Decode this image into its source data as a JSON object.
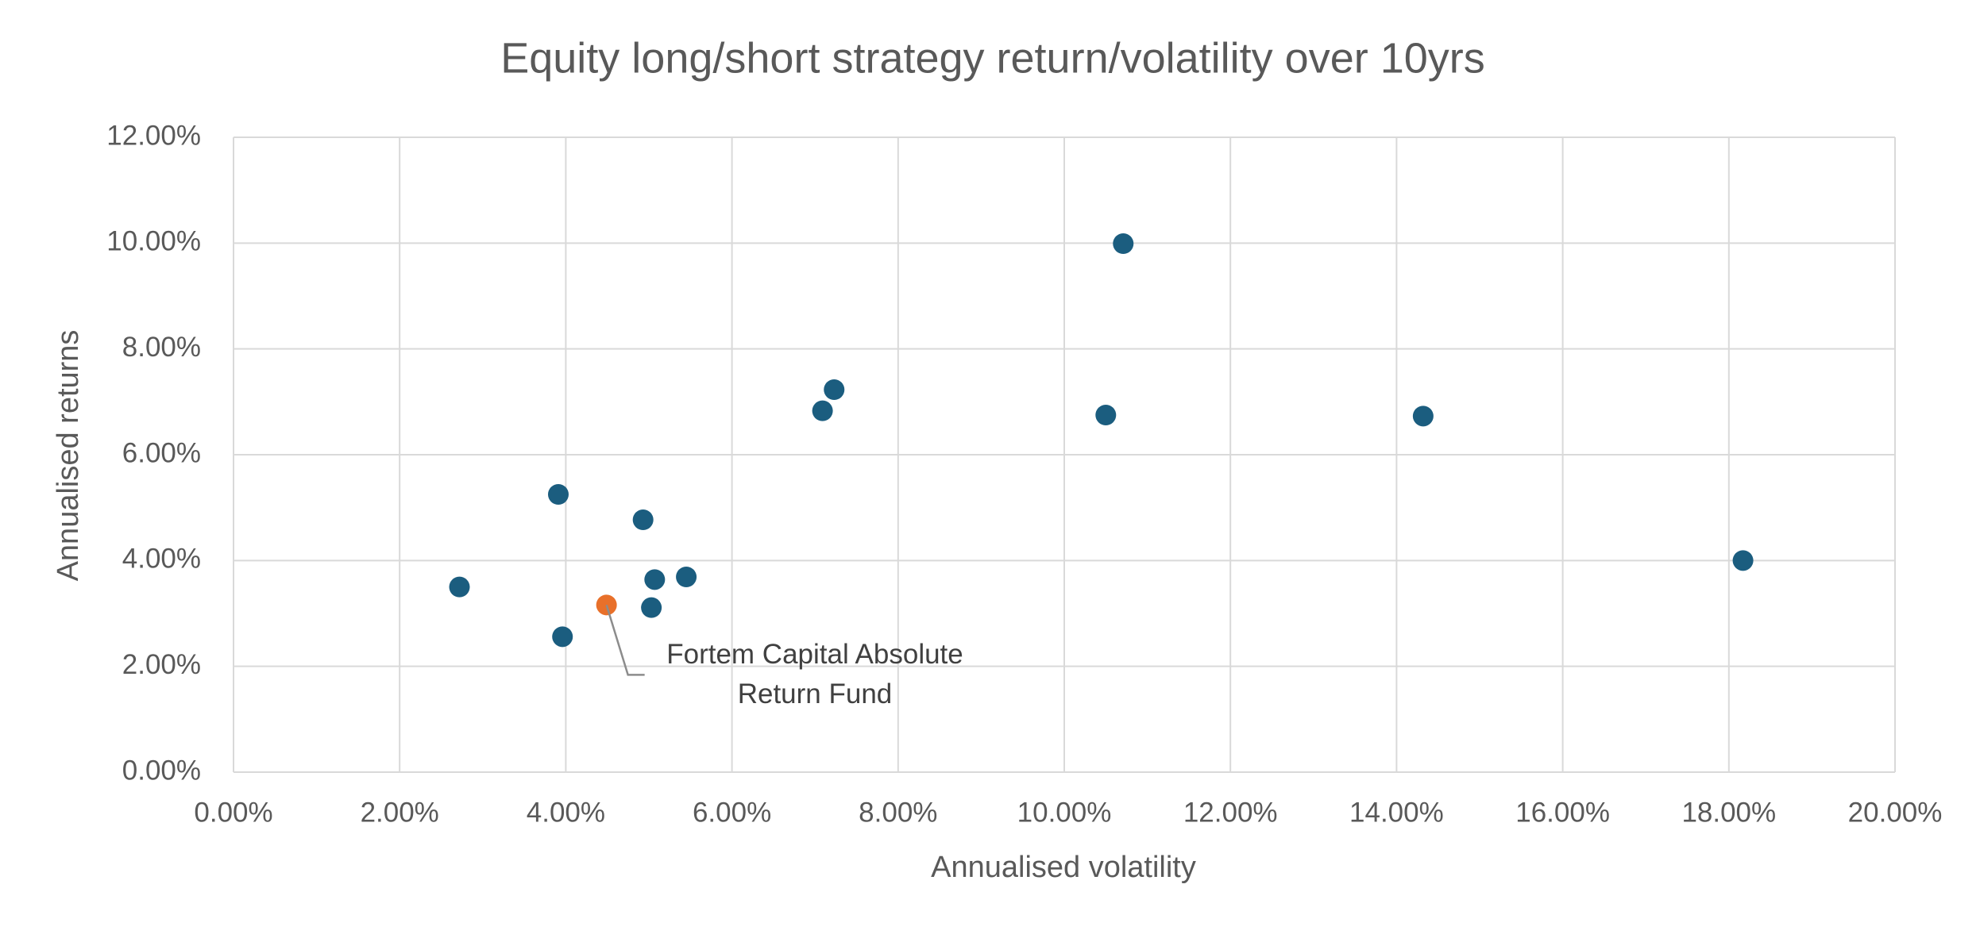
{
  "chart_data": {
    "type": "scatter",
    "title": "Equity long/short strategy return/volatility over 10yrs",
    "x_label": "Annualised volatility",
    "y_label": "Annualised returns",
    "xlim": [
      0,
      20
    ],
    "xticks": [
      {
        "value": 0,
        "label": "0.00%"
      },
      {
        "value": 2,
        "label": "2.00%"
      },
      {
        "value": 4,
        "label": "4.00%"
      },
      {
        "value": 6,
        "label": "6.00%"
      },
      {
        "value": 8,
        "label": "8.00%"
      },
      {
        "value": 10,
        "label": "10.00%"
      },
      {
        "value": 12,
        "label": "12.00%"
      },
      {
        "value": 14,
        "label": "14.00%"
      },
      {
        "value": 16,
        "label": "16.00%"
      },
      {
        "value": 18,
        "label": "18.00%"
      },
      {
        "value": 20,
        "label": "20.00%"
      }
    ],
    "ylim": [
      0,
      12
    ],
    "yticks": [
      {
        "value": 0,
        "label": "0.00%"
      },
      {
        "value": 2,
        "label": "2.00%"
      },
      {
        "value": 4,
        "label": "4.00%"
      },
      {
        "value": 6,
        "label": "6.00%"
      },
      {
        "value": 8,
        "label": "8.00%"
      },
      {
        "value": 10,
        "label": "10.00%"
      },
      {
        "value": 12,
        "label": "12.00%"
      }
    ],
    "grid": true,
    "series": [
      {
        "color": "#1b5d7f",
        "x": [
          2.72,
          3.91,
          3.96,
          4.93,
          5.07,
          5.03,
          5.45,
          7.09,
          7.23,
          10.5,
          10.71,
          14.32,
          18.17
        ],
        "values": [
          3.5,
          5.25,
          2.56,
          4.77,
          3.64,
          3.11,
          3.69,
          6.83,
          7.23,
          6.75,
          9.99,
          6.73,
          4.0
        ]
      },
      {
        "color": "#e8702a",
        "x": [
          4.49
        ],
        "values": [
          3.16
        ]
      }
    ],
    "annotations": [
      {
        "text": "Fortem Capital Absolute Return Fund"
      }
    ]
  }
}
